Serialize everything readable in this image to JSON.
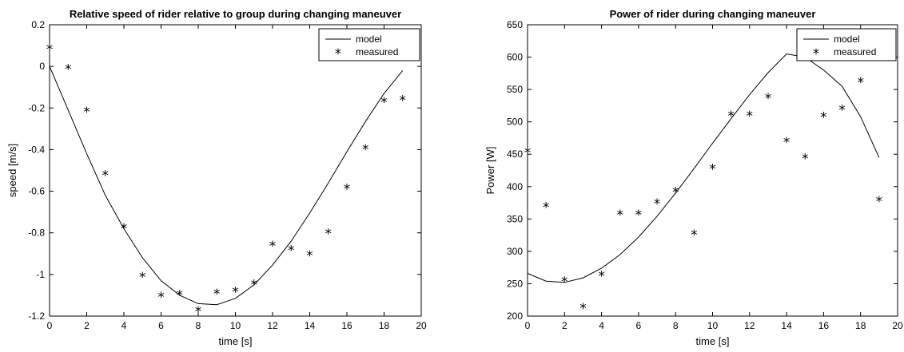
{
  "chart_data": [
    {
      "type": "line",
      "title": "Relative speed of rider relative to group during changing maneuver",
      "xlabel": "time [s]",
      "ylabel": "speed [m/s]",
      "xlim": [
        0,
        20
      ],
      "ylim": [
        -1.2,
        0.2
      ],
      "xticks": [
        0,
        2,
        4,
        6,
        8,
        10,
        12,
        14,
        16,
        18,
        20
      ],
      "yticks": [
        -1.2,
        -1,
        -0.8,
        -0.6,
        -0.4,
        -0.2,
        0,
        0.2
      ],
      "xtick_labels": [
        "0",
        "2",
        "4",
        "6",
        "8",
        "10",
        "12",
        "14",
        "16",
        "18",
        "20"
      ],
      "ytick_labels": [
        "-1.2",
        "-1",
        "-0.8",
        "-0.6",
        "-0.4",
        "-0.2",
        "0",
        "0.2"
      ],
      "legend_position": "top-right",
      "grid": false,
      "series": [
        {
          "name": "model",
          "style": "line",
          "x": [
            0,
            1,
            2,
            3,
            4,
            5,
            6,
            7,
            8,
            9,
            10,
            11,
            12,
            13,
            14,
            15,
            16,
            17,
            18,
            19
          ],
          "y": [
            0,
            -0.21,
            -0.42,
            -0.62,
            -0.78,
            -0.92,
            -1.03,
            -1.1,
            -1.14,
            -1.145,
            -1.115,
            -1.05,
            -0.955,
            -0.84,
            -0.705,
            -0.56,
            -0.41,
            -0.265,
            -0.13,
            -0.02
          ]
        },
        {
          "name": "measured",
          "style": "marker",
          "marker": "*",
          "x": [
            0,
            1,
            2,
            3,
            4,
            5,
            6,
            7,
            8,
            9,
            10,
            11,
            12,
            13,
            14,
            15,
            16,
            17,
            18,
            19
          ],
          "y": [
            0.09,
            -0.005,
            -0.21,
            -0.515,
            -0.77,
            -1.005,
            -1.1,
            -1.09,
            -1.17,
            -1.085,
            -1.075,
            -1.04,
            -0.855,
            -0.875,
            -0.9,
            -0.795,
            -0.58,
            -0.39,
            -0.165,
            -0.155
          ]
        }
      ]
    },
    {
      "type": "line",
      "title": "Power of rider during changing maneuver",
      "xlabel": "time [s]",
      "ylabel": "Power [W]",
      "xlim": [
        0,
        20
      ],
      "ylim": [
        200,
        650
      ],
      "xticks": [
        0,
        2,
        4,
        6,
        8,
        10,
        12,
        14,
        16,
        18,
        20
      ],
      "yticks": [
        200,
        250,
        300,
        350,
        400,
        450,
        500,
        550,
        600,
        650
      ],
      "xtick_labels": [
        "0",
        "2",
        "4",
        "6",
        "8",
        "10",
        "12",
        "14",
        "16",
        "18",
        "20"
      ],
      "ytick_labels": [
        "200",
        "250",
        "300",
        "350",
        "400",
        "450",
        "500",
        "550",
        "600",
        "650"
      ],
      "legend_position": "top-right",
      "grid": false,
      "series": [
        {
          "name": "model",
          "style": "line",
          "x": [
            0,
            1,
            2,
            3,
            4,
            5,
            6,
            7,
            8,
            9,
            10,
            11,
            12,
            13,
            14,
            15,
            16,
            17,
            18,
            19
          ],
          "y": [
            266,
            254,
            252,
            259,
            274,
            295,
            322,
            354,
            390,
            428,
            467,
            505,
            542,
            576,
            605,
            600,
            580,
            555,
            508,
            445
          ]
        },
        {
          "name": "measured",
          "style": "marker",
          "marker": "*",
          "x": [
            0,
            1,
            2,
            3,
            4,
            5,
            6,
            7,
            8,
            9,
            10,
            11,
            12,
            13,
            14,
            15,
            16,
            17,
            18,
            19
          ],
          "y": [
            455,
            371,
            256,
            215,
            265,
            359,
            359,
            376,
            394,
            328,
            430,
            512,
            512,
            539,
            471,
            446,
            510,
            521,
            564,
            380
          ]
        }
      ]
    }
  ]
}
